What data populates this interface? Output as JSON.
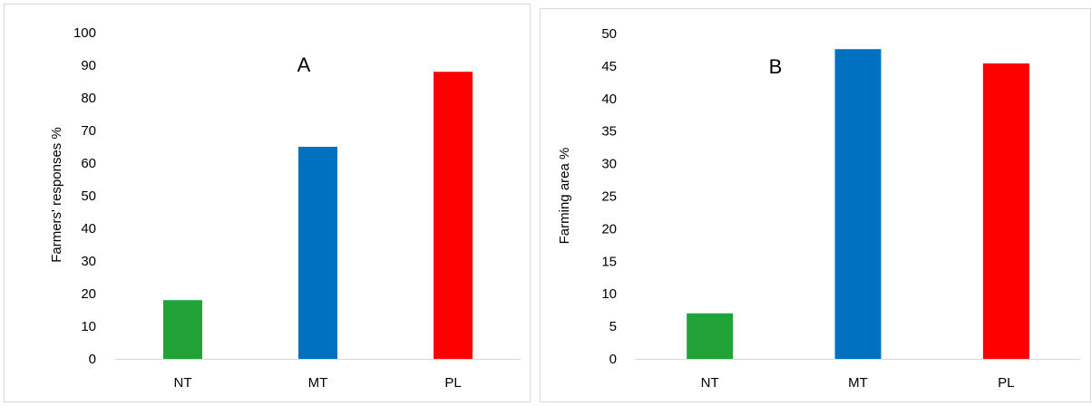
{
  "chart_data": [
    {
      "type": "bar",
      "title": "",
      "panel_label": "A",
      "categories": [
        "NT",
        "MT",
        "PL"
      ],
      "values": [
        18,
        65,
        88
      ],
      "colors": [
        "#21a338",
        "#0070c0",
        "#ff0000"
      ],
      "xlabel": "",
      "ylabel": "Farmers' responses %",
      "ylim": [
        0,
        100
      ],
      "yticks": [
        0,
        10,
        20,
        30,
        40,
        50,
        60,
        70,
        80,
        90,
        100
      ],
      "grid": false,
      "legend": "none"
    },
    {
      "type": "bar",
      "title": "",
      "panel_label": "B",
      "categories": [
        "NT",
        "MT",
        "PL"
      ],
      "values": [
        7,
        47.6,
        45.4
      ],
      "colors": [
        "#21a338",
        "#0070c0",
        "#ff0000"
      ],
      "xlabel": "",
      "ylabel": "Farming area %",
      "ylim": [
        0,
        50
      ],
      "yticks": [
        0,
        5,
        10,
        15,
        20,
        25,
        30,
        35,
        40,
        45,
        50
      ],
      "grid": false,
      "legend": "none"
    }
  ]
}
